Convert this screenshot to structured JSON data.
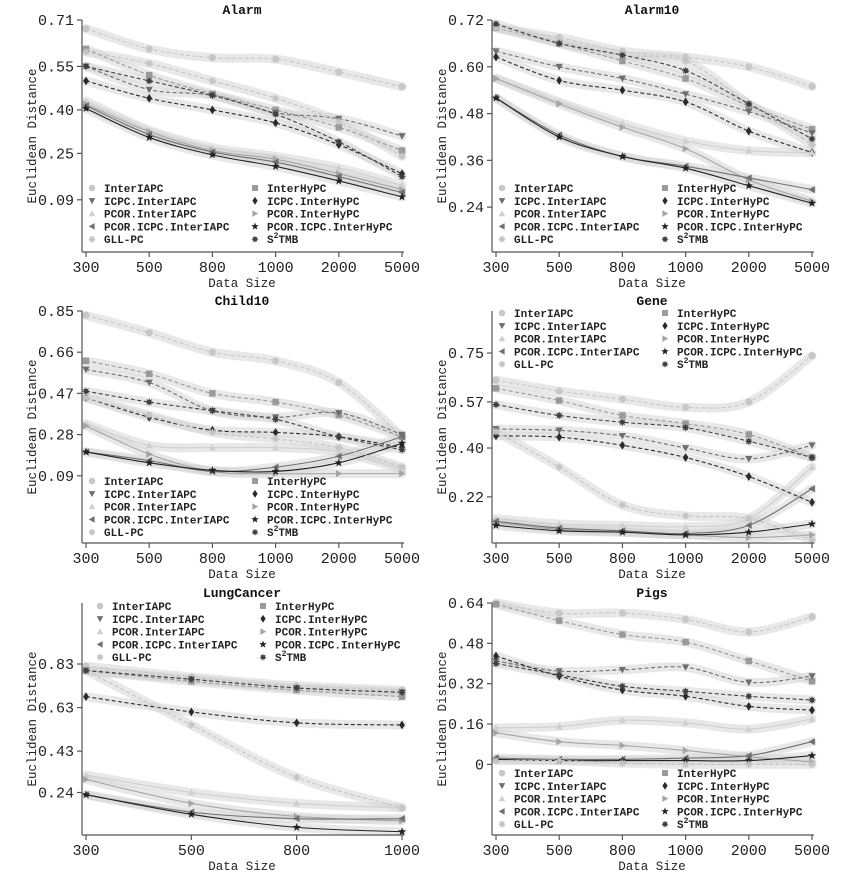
{
  "figure": {
    "ylabel": "Euclidean Distance",
    "xlabel": "Data Size"
  },
  "legend": [
    {
      "name": "InterIAPC",
      "marker": "circle",
      "color": "#c8c8c8",
      "dash": true,
      "display": "InterIAPC"
    },
    {
      "name": "InterHyPC",
      "marker": "square",
      "color": "#9a9a9a",
      "dash": true,
      "display": "InterHyPC"
    },
    {
      "name": "ICPC.InterIAPC",
      "marker": "triangle-down",
      "color": "#6e6e6e",
      "dash": true,
      "display": "ICPC.InterIAPC"
    },
    {
      "name": "ICPC.InterHyPC",
      "marker": "diamond",
      "color": "#2a2a2a",
      "dash": true,
      "display": "ICPC.InterHyPC"
    },
    {
      "name": "PCOR.InterIAPC",
      "marker": "triangle-up",
      "color": "#cfcfcf",
      "dash": false,
      "display": "PCOR.InterIAPC"
    },
    {
      "name": "PCOR.InterHyPC",
      "marker": "triangle-right",
      "color": "#a5a5a5",
      "dash": false,
      "display": "PCOR.InterHyPC"
    },
    {
      "name": "PCOR.ICPC.InterIAPC",
      "marker": "triangle-left",
      "color": "#707070",
      "dash": false,
      "display": "PCOR.ICPC.InterIAPC"
    },
    {
      "name": "PCOR.ICPC.InterHyPC",
      "marker": "star",
      "color": "#222222",
      "dash": false,
      "display": "PCOR.ICPC.InterHyPC"
    },
    {
      "name": "GLL-PC",
      "marker": "asterisk",
      "color": "#c4c4c4",
      "dash": true,
      "display": "GLL-PC"
    },
    {
      "name": "S2TMB",
      "marker": "burst",
      "color": "#404040",
      "dash": true,
      "display": "S",
      "sup": "2",
      "rest": "TMB"
    }
  ],
  "chart_data": [
    {
      "type": "line",
      "title": "Alarm",
      "xlabel": "Data Size",
      "ylabel": "Euclidean Distance",
      "categories": [
        "300",
        "500",
        "800",
        "1000",
        "2000",
        "5000"
      ],
      "yticks": [
        "0.09",
        "0.25",
        "0.40",
        "0.55",
        "0.71"
      ],
      "ytick_values": [
        0.09,
        0.25,
        0.4,
        0.55,
        0.71
      ],
      "ylim": [
        -0.09,
        0.71
      ],
      "legend_position": "lower-center",
      "series": [
        {
          "name": "InterIAPC",
          "values": [
            0.68,
            0.61,
            0.58,
            0.575,
            0.53,
            0.48
          ]
        },
        {
          "name": "InterHyPC",
          "values": [
            0.61,
            0.52,
            0.455,
            0.4,
            0.34,
            0.26
          ]
        },
        {
          "name": "ICPC.InterIAPC",
          "values": [
            0.55,
            0.47,
            0.45,
            0.39,
            0.37,
            0.31
          ]
        },
        {
          "name": "ICPC.InterHyPC",
          "values": [
            0.5,
            0.44,
            0.4,
            0.355,
            0.28,
            0.18
          ]
        },
        {
          "name": "PCOR.InterIAPC",
          "values": [
            0.43,
            0.33,
            0.27,
            0.24,
            0.2,
            0.14
          ]
        },
        {
          "name": "PCOR.InterHyPC",
          "values": [
            0.42,
            0.325,
            0.26,
            0.23,
            0.18,
            0.125
          ]
        },
        {
          "name": "PCOR.ICPC.InterIAPC",
          "values": [
            0.415,
            0.315,
            0.255,
            0.22,
            0.17,
            0.115
          ]
        },
        {
          "name": "PCOR.ICPC.InterHyPC",
          "values": [
            0.405,
            0.305,
            0.245,
            0.205,
            0.155,
            0.1
          ]
        },
        {
          "name": "GLL-PC",
          "values": [
            0.6,
            0.56,
            0.5,
            0.44,
            0.36,
            0.24
          ]
        },
        {
          "name": "S2TMB",
          "values": [
            0.55,
            0.5,
            0.45,
            0.385,
            0.29,
            0.17
          ]
        }
      ]
    },
    {
      "type": "line",
      "title": "Alarm10",
      "xlabel": "Data Size",
      "ylabel": "Euclidean Distance",
      "categories": [
        "300",
        "500",
        "800",
        "1000",
        "2000",
        "5000"
      ],
      "yticks": [
        "0.24",
        "0.36",
        "0.48",
        "0.60",
        "0.72"
      ],
      "ytick_values": [
        0.24,
        0.36,
        0.48,
        0.6,
        0.72
      ],
      "ylim": [
        0.125,
        0.72
      ],
      "legend_position": "lower-center",
      "series": [
        {
          "name": "InterIAPC",
          "values": [
            0.7,
            0.675,
            0.64,
            0.625,
            0.6,
            0.55
          ]
        },
        {
          "name": "InterHyPC",
          "values": [
            0.7,
            0.66,
            0.615,
            0.57,
            0.5,
            0.44
          ]
        },
        {
          "name": "ICPC.InterIAPC",
          "values": [
            0.64,
            0.6,
            0.57,
            0.53,
            0.485,
            0.43
          ]
        },
        {
          "name": "ICPC.InterHyPC",
          "values": [
            0.625,
            0.565,
            0.54,
            0.51,
            0.435,
            0.38
          ]
        },
        {
          "name": "PCOR.InterIAPC",
          "values": [
            0.57,
            0.51,
            0.455,
            0.41,
            0.385,
            0.38
          ]
        },
        {
          "name": "PCOR.InterHyPC",
          "values": [
            0.57,
            0.505,
            0.445,
            0.39,
            0.31,
            0.255
          ]
        },
        {
          "name": "PCOR.ICPC.InterIAPC",
          "values": [
            0.52,
            0.425,
            0.37,
            0.345,
            0.315,
            0.285
          ]
        },
        {
          "name": "PCOR.ICPC.InterHyPC",
          "values": [
            0.52,
            0.42,
            0.37,
            0.34,
            0.295,
            0.25
          ]
        },
        {
          "name": "GLL-PC",
          "values": [
            0.7,
            0.665,
            0.63,
            0.615,
            0.505,
            0.4
          ]
        },
        {
          "name": "S2TMB",
          "values": [
            0.71,
            0.66,
            0.63,
            0.59,
            0.505,
            0.415
          ]
        }
      ]
    },
    {
      "type": "line",
      "title": "Child10",
      "xlabel": "Data Size",
      "ylabel": "Euclidean Distance",
      "categories": [
        "300",
        "500",
        "800",
        "1000",
        "2000",
        "5000"
      ],
      "yticks": [
        "0.09",
        "0.28",
        "0.47",
        "0.66",
        "0.85"
      ],
      "ytick_values": [
        0.09,
        0.28,
        0.47,
        0.66,
        0.85
      ],
      "ylim": [
        -0.22,
        0.85
      ],
      "legend_position": "lower-center",
      "series": [
        {
          "name": "InterIAPC",
          "values": [
            0.83,
            0.75,
            0.66,
            0.62,
            0.52,
            0.27
          ]
        },
        {
          "name": "InterHyPC",
          "values": [
            0.62,
            0.56,
            0.47,
            0.43,
            0.37,
            0.27
          ]
        },
        {
          "name": "ICPC.InterIAPC",
          "values": [
            0.58,
            0.52,
            0.39,
            0.36,
            0.38,
            0.28
          ]
        },
        {
          "name": "ICPC.InterHyPC",
          "values": [
            0.45,
            0.36,
            0.3,
            0.29,
            0.27,
            0.22
          ]
        },
        {
          "name": "PCOR.InterIAPC",
          "values": [
            0.33,
            0.23,
            0.22,
            0.22,
            0.2,
            0.12
          ]
        },
        {
          "name": "PCOR.InterHyPC",
          "values": [
            0.32,
            0.19,
            0.11,
            0.1,
            0.1,
            0.1
          ]
        },
        {
          "name": "PCOR.ICPC.InterIAPC",
          "values": [
            0.2,
            0.16,
            0.11,
            0.13,
            0.18,
            0.27
          ]
        },
        {
          "name": "PCOR.ICPC.InterHyPC",
          "values": [
            0.2,
            0.15,
            0.115,
            0.11,
            0.15,
            0.24
          ]
        },
        {
          "name": "GLL-PC",
          "values": [
            0.45,
            0.37,
            0.29,
            0.26,
            0.22,
            0.13
          ]
        },
        {
          "name": "S2TMB",
          "values": [
            0.48,
            0.43,
            0.39,
            0.35,
            0.27,
            0.21
          ]
        }
      ]
    },
    {
      "type": "line",
      "title": "Gene",
      "xlabel": "Data Size",
      "ylabel": "Euclidean Distance",
      "categories": [
        "300",
        "500",
        "800",
        "1000",
        "2000",
        "5000"
      ],
      "yticks": [
        "0.22",
        "0.40",
        "0.57",
        "0.75"
      ],
      "ytick_values": [
        0.22,
        0.4,
        0.57,
        0.75
      ],
      "ylim": [
        0.05,
        0.905
      ],
      "legend_position": "top-center",
      "series": [
        {
          "name": "InterIAPC",
          "values": [
            0.65,
            0.61,
            0.58,
            0.55,
            0.57,
            0.74
          ]
        },
        {
          "name": "InterHyPC",
          "values": [
            0.62,
            0.575,
            0.52,
            0.49,
            0.45,
            0.365
          ]
        },
        {
          "name": "ICPC.InterIAPC",
          "values": [
            0.47,
            0.465,
            0.445,
            0.4,
            0.36,
            0.41
          ]
        },
        {
          "name": "ICPC.InterHyPC",
          "values": [
            0.445,
            0.44,
            0.41,
            0.365,
            0.295,
            0.2
          ]
        },
        {
          "name": "PCOR.InterIAPC",
          "values": [
            0.14,
            0.12,
            0.115,
            0.11,
            0.14,
            0.33
          ]
        },
        {
          "name": "PCOR.InterHyPC",
          "values": [
            0.125,
            0.1,
            0.09,
            0.08,
            0.07,
            0.08
          ]
        },
        {
          "name": "PCOR.ICPC.InterIAPC",
          "values": [
            0.13,
            0.105,
            0.095,
            0.085,
            0.115,
            0.25
          ]
        },
        {
          "name": "PCOR.ICPC.InterHyPC",
          "values": [
            0.115,
            0.095,
            0.09,
            0.08,
            0.09,
            0.12
          ]
        },
        {
          "name": "GLL-PC",
          "values": [
            0.46,
            0.33,
            0.19,
            0.15,
            0.14,
            0.06
          ]
        },
        {
          "name": "S2TMB",
          "values": [
            0.56,
            0.52,
            0.495,
            0.475,
            0.425,
            0.365
          ]
        }
      ]
    },
    {
      "type": "line",
      "title": "LungCancer",
      "xlabel": "Data Size",
      "ylabel": "Euclidean Distance",
      "categories": [
        "300",
        "500",
        "800",
        "1000"
      ],
      "yticks": [
        "0.24",
        "0.43",
        "0.63",
        "0.83"
      ],
      "ytick_values": [
        0.24,
        0.43,
        0.63,
        0.83
      ],
      "ylim": [
        0.045,
        1.11
      ],
      "legend_position": "top-center",
      "series": [
        {
          "name": "InterIAPC",
          "values": [
            0.82,
            0.77,
            0.73,
            0.71
          ]
        },
        {
          "name": "InterHyPC",
          "values": [
            0.8,
            0.75,
            0.71,
            0.68
          ]
        },
        {
          "name": "ICPC.InterIAPC",
          "values": [
            0.8,
            0.76,
            0.72,
            0.7
          ]
        },
        {
          "name": "ICPC.InterHyPC",
          "values": [
            0.68,
            0.61,
            0.56,
            0.55
          ]
        },
        {
          "name": "PCOR.InterIAPC",
          "values": [
            0.32,
            0.24,
            0.19,
            0.17
          ]
        },
        {
          "name": "PCOR.InterHyPC",
          "values": [
            0.3,
            0.19,
            0.13,
            0.11
          ]
        },
        {
          "name": "PCOR.ICPC.InterIAPC",
          "values": [
            0.23,
            0.15,
            0.12,
            0.12
          ]
        },
        {
          "name": "PCOR.ICPC.InterHyPC",
          "values": [
            0.23,
            0.14,
            0.08,
            0.06
          ]
        },
        {
          "name": "GLL-PC",
          "values": [
            0.8,
            0.55,
            0.31,
            0.17
          ]
        },
        {
          "name": "S2TMB",
          "values": [
            0.8,
            0.76,
            0.72,
            0.7
          ]
        }
      ]
    },
    {
      "type": "line",
      "title": "Pigs",
      "xlabel": "Data Size",
      "ylabel": "Euclidean Distance",
      "categories": [
        "300",
        "500",
        "800",
        "1000",
        "2000",
        "5000"
      ],
      "yticks": [
        "0",
        "0.16",
        "0.32",
        "0.48",
        "0.64"
      ],
      "ytick_values": [
        0,
        0.16,
        0.32,
        0.48,
        0.64
      ],
      "ylim": [
        -0.28,
        0.64
      ],
      "legend_position": "lower-center",
      "series": [
        {
          "name": "InterIAPC",
          "values": [
            0.64,
            0.6,
            0.6,
            0.575,
            0.525,
            0.585
          ]
        },
        {
          "name": "InterHyPC",
          "values": [
            0.635,
            0.57,
            0.515,
            0.485,
            0.41,
            0.33
          ]
        },
        {
          "name": "ICPC.InterIAPC",
          "values": [
            0.41,
            0.37,
            0.375,
            0.385,
            0.325,
            0.35
          ]
        },
        {
          "name": "ICPC.InterHyPC",
          "values": [
            0.43,
            0.35,
            0.295,
            0.27,
            0.23,
            0.215
          ]
        },
        {
          "name": "PCOR.InterIAPC",
          "values": [
            0.145,
            0.15,
            0.175,
            0.165,
            0.14,
            0.18
          ]
        },
        {
          "name": "PCOR.InterHyPC",
          "values": [
            0.125,
            0.09,
            0.075,
            0.055,
            0.03,
            0.01
          ]
        },
        {
          "name": "PCOR.ICPC.InterIAPC",
          "values": [
            0.025,
            0.02,
            0.02,
            0.025,
            0.035,
            0.09
          ]
        },
        {
          "name": "PCOR.ICPC.InterHyPC",
          "values": [
            0.02,
            0.015,
            0.015,
            0.015,
            0.015,
            0.035
          ]
        },
        {
          "name": "GLL-PC",
          "values": [
            0.015,
            0.015,
            0.005,
            0.0,
            0.0,
            0.0
          ]
        },
        {
          "name": "S2TMB",
          "values": [
            0.4,
            0.355,
            0.31,
            0.29,
            0.27,
            0.255
          ]
        }
      ]
    }
  ]
}
